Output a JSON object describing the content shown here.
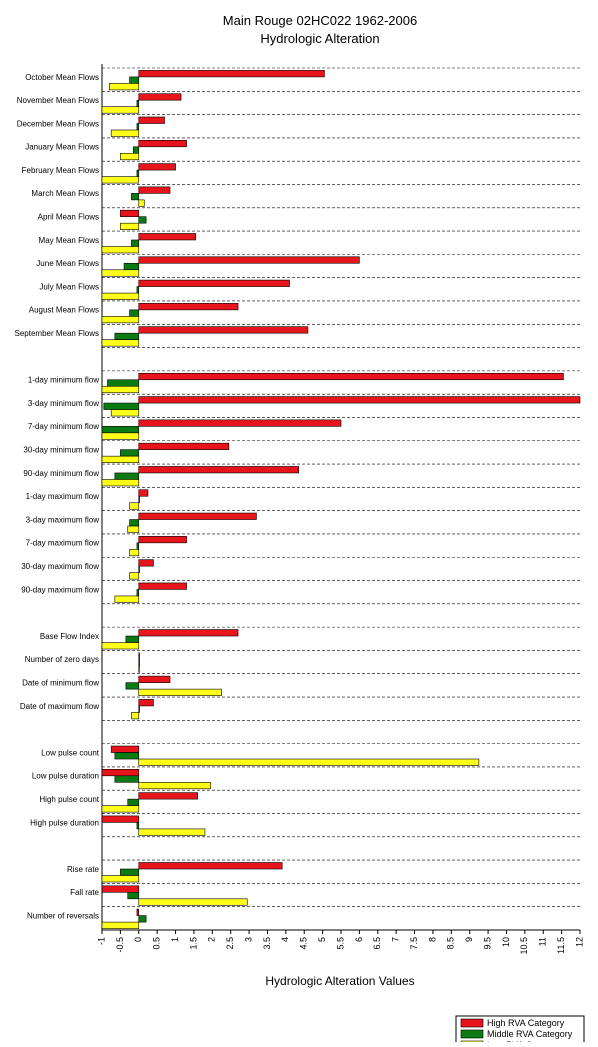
{
  "chart_data": {
    "type": "hbar",
    "title": "Main Rouge 02HC022 1962-2006",
    "subtitle": "Hydrologic Alteration",
    "x_label": "Hydrologic Alteration Values",
    "categories": [
      "October Mean Flows",
      "November Mean Flows",
      "December Mean Flows",
      "January Mean Flows",
      "February Mean Flows",
      "March Mean Flows",
      "April Mean Flows",
      "May Mean Flows",
      "June Mean Flows",
      "July Mean Flows",
      "August Mean Flows",
      "September Mean Flows",
      null,
      "1-day minimum flow",
      "3-day minimum flow",
      "7-day minimum flow",
      "30-day minimum flow",
      "90-day minimum flow",
      "1-day maximum flow",
      "3-day maximum flow",
      "7-day maximum flow",
      "30-day maximum flow",
      "90-day maximum flow",
      null,
      "Base Flow Index",
      "Number of zero days",
      "Date of minimum flow",
      "Date of maximum flow",
      null,
      "Low pulse count",
      "Low pulse duration",
      "High pulse count",
      "High pulse duration",
      null,
      "Rise rate",
      "Fall rate",
      "Number of reversals"
    ],
    "series": [
      {
        "name": "High RVA Category",
        "color": "#e8141b",
        "values": [
          5.05,
          1.15,
          0.7,
          1.3,
          1.0,
          0.85,
          -0.5,
          1.55,
          6.0,
          4.1,
          2.7,
          4.6,
          null,
          11.55,
          12,
          5.5,
          2.45,
          4.35,
          0.25,
          3.2,
          1.3,
          0.4,
          1.3,
          null,
          2.7,
          0,
          0.85,
          0.4,
          null,
          -0.75,
          -1,
          1.6,
          -1,
          null,
          3.9,
          -1,
          -0.05
        ]
      },
      {
        "name": "Middle RVA Category",
        "color": "#0a7a12",
        "values": [
          -0.25,
          -0.05,
          -0.05,
          -0.15,
          -0.05,
          -0.2,
          0.2,
          -0.2,
          -0.4,
          -0.05,
          -0.25,
          -0.65,
          null,
          -0.85,
          -0.95,
          -1,
          -0.5,
          -0.65,
          0,
          -0.25,
          -0.05,
          0,
          -0.05,
          null,
          -0.35,
          0,
          -0.35,
          0,
          null,
          -0.65,
          -0.65,
          -0.3,
          -0.05,
          null,
          -0.5,
          -0.3,
          0.2
        ]
      },
      {
        "name": "Low RVA Category",
        "color": "#ffff1a",
        "values": [
          -0.8,
          -1,
          -0.75,
          -0.5,
          -1,
          0.15,
          -0.5,
          -1,
          -1,
          -1,
          -1,
          -1,
          null,
          -1,
          -0.75,
          -1,
          -1,
          -1,
          -0.25,
          -0.3,
          -0.25,
          -0.25,
          -0.65,
          null,
          -1,
          0,
          2.25,
          -0.2,
          null,
          9.25,
          1.95,
          -1,
          1.8,
          null,
          -1,
          2.95,
          -1
        ]
      }
    ],
    "xlim": [
      -1,
      12
    ],
    "xticks": [
      -1,
      -0.5,
      0,
      0.5,
      1,
      1.5,
      2,
      2.5,
      3,
      3.5,
      4,
      4.5,
      5,
      5.5,
      6,
      6.5,
      7,
      7.5,
      8,
      8.5,
      9,
      9.5,
      10,
      10.5,
      11,
      11.5,
      12
    ],
    "legend": "bottom-right"
  }
}
